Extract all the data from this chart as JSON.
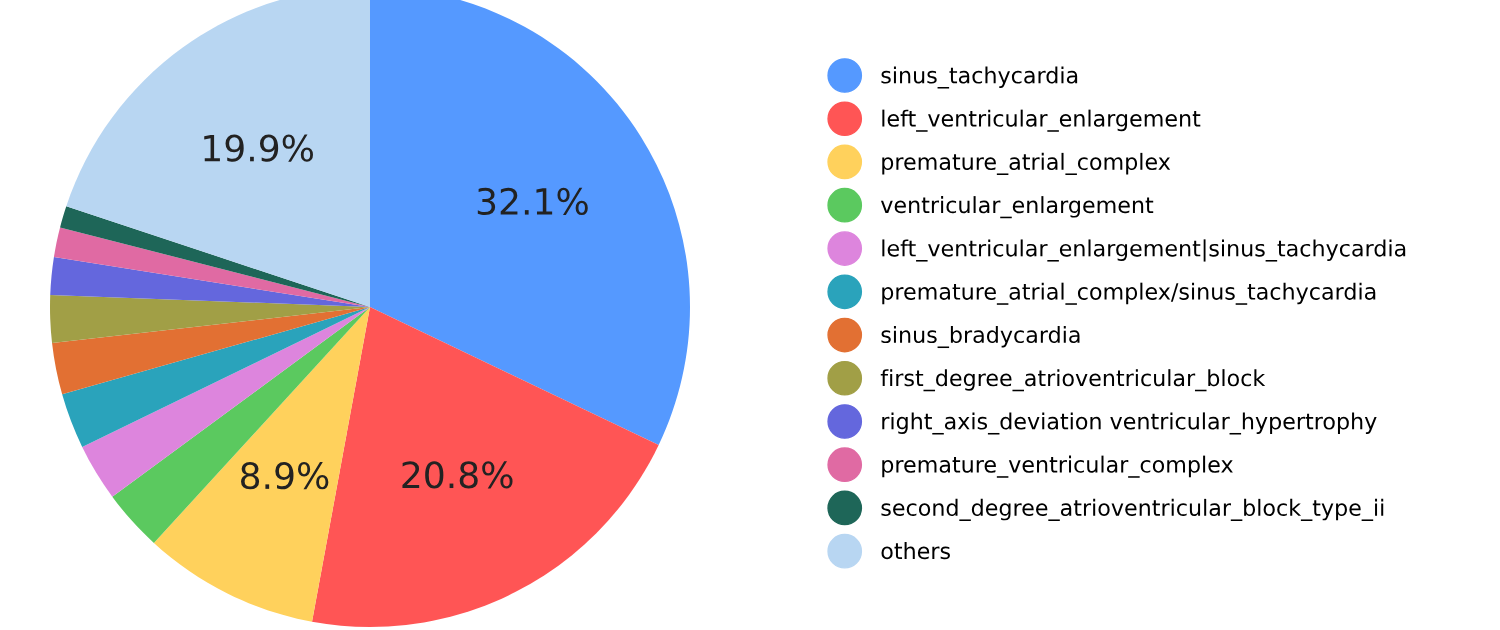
{
  "chart_data": {
    "type": "pie",
    "categories": [
      "sinus_tachycardia",
      "left_ventricular_enlargement",
      "premature_atrial_complex",
      "ventricular_enlargement",
      "left_ventricular_enlargement|sinus_tachycardia",
      "premature_atrial_complex/sinus_tachycardia",
      "sinus_bradycardia",
      "first_degree_atrioventricular_block",
      "right_axis_deviation ventricular_hypertrophy",
      "premature_ventricular_complex",
      "second_degree_atrioventricular_block_type_ii",
      "others"
    ],
    "values": [
      32.1,
      20.8,
      8.9,
      3.1,
      2.9,
      2.8,
      2.6,
      2.4,
      1.9,
      1.5,
      1.1,
      19.9
    ],
    "colors": [
      "#5599ff",
      "#ff5555",
      "#ffd15c",
      "#5bc95f",
      "#dd85dd",
      "#2aa3bb",
      "#e27033",
      "#a19f46",
      "#6467dd",
      "#e06aa3",
      "#1e6658",
      "#b8d6f2"
    ],
    "value_labels": [
      "32.1%",
      "20.8%",
      "8.9%",
      null,
      null,
      null,
      null,
      null,
      null,
      null,
      null,
      "19.9%"
    ],
    "legend": "right"
  }
}
